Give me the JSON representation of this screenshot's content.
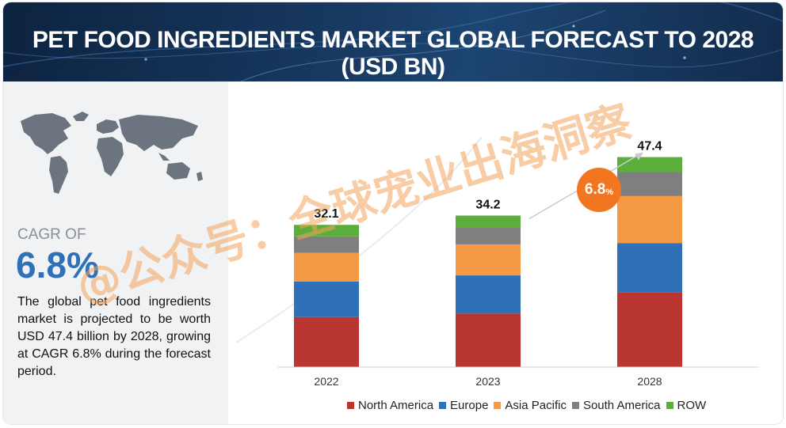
{
  "header": {
    "title": "PET FOOD INGREDIENTS MARKET GLOBAL FORECAST TO 2028 (USD BN)"
  },
  "left_panel": {
    "map_icon": "world-map-icon",
    "cagr_label": "CAGR OF",
    "cagr_value": "6.8%",
    "description": "The global pet food ingredients market is projected to be worth USD 47.4 billion by 2028, growing at CAGR 6.8% during the forecast period."
  },
  "badge": {
    "value": "6.8",
    "unit": "%"
  },
  "watermark": {
    "text": "@公众号：全球宠业出海洞察"
  },
  "colors": {
    "north_america": "#b8362f",
    "europe": "#2f71b8",
    "asia_pacific": "#f59a44",
    "south_america": "#7f7f7f",
    "row": "#5cae3a",
    "badge": "#f2761f",
    "header_bg": "#14335a"
  },
  "chart_data": {
    "type": "bar",
    "stacked": true,
    "title": "PET FOOD INGREDIENTS MARKET GLOBAL FORECAST TO 2028 (USD BN)",
    "xlabel": "",
    "ylabel": "",
    "categories": [
      "2022",
      "2023",
      "2028"
    ],
    "totals": [
      "32.1",
      "34.2",
      "47.4"
    ],
    "series": [
      {
        "name": "North America",
        "color": "#b8362f",
        "values": [
          11.3,
          12.1,
          16.9
        ]
      },
      {
        "name": "Europe",
        "color": "#2f71b8",
        "values": [
          8.0,
          8.6,
          11.1
        ]
      },
      {
        "name": "Asia Pacific",
        "color": "#f59a44",
        "values": [
          6.5,
          7.0,
          10.6
        ]
      },
      {
        "name": "South America",
        "color": "#7f7f7f",
        "values": [
          3.7,
          3.9,
          5.5
        ]
      },
      {
        "name": "ROW",
        "color": "#5cae3a",
        "values": [
          2.6,
          2.6,
          3.3
        ]
      }
    ],
    "ylim": [
      0,
      50
    ],
    "grid": false,
    "legend": "bottom",
    "annotation": "6.8%"
  }
}
